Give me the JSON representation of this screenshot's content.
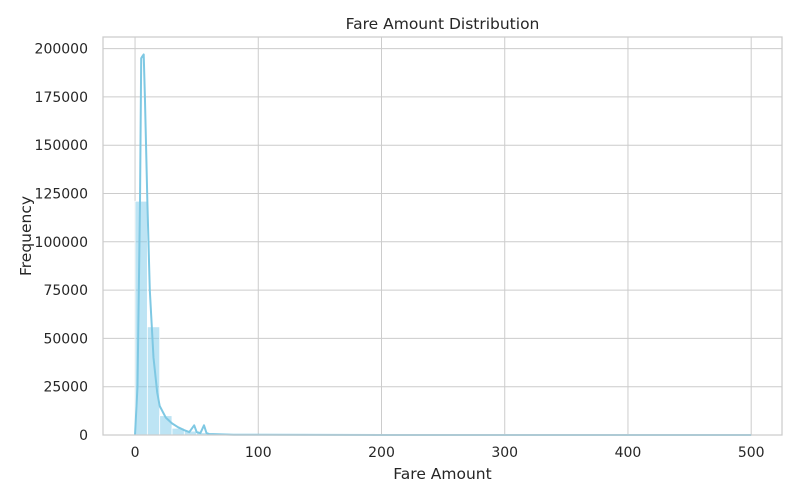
{
  "chart_data": {
    "type": "bar",
    "title": "Fare Amount Distribution",
    "xlabel": "Fare Amount",
    "ylabel": "Frequency",
    "xlim": [
      -26,
      525
    ],
    "ylim": [
      0,
      206000
    ],
    "grid": true,
    "x_ticks": [
      0,
      100,
      200,
      300,
      400,
      500
    ],
    "x_tick_labels": [
      "0",
      "100",
      "200",
      "300",
      "400",
      "500"
    ],
    "y_ticks": [
      0,
      25000,
      50000,
      75000,
      100000,
      125000,
      150000,
      175000,
      200000
    ],
    "y_tick_labels": [
      "0",
      "25000",
      "50000",
      "75000",
      "100000",
      "125000",
      "150000",
      "175000",
      "200000"
    ],
    "bin_width": 10,
    "bins": [
      {
        "x0": 0,
        "x1": 10,
        "count": 121000
      },
      {
        "x0": 10,
        "x1": 20,
        "count": 56000
      },
      {
        "x0": 20,
        "x1": 30,
        "count": 10000
      },
      {
        "x0": 30,
        "x1": 40,
        "count": 3500
      },
      {
        "x0": 40,
        "x1": 50,
        "count": 2000
      },
      {
        "x0": 50,
        "x1": 60,
        "count": 1200
      },
      {
        "x0": 60,
        "x1": 70,
        "count": 500
      },
      {
        "x0": 70,
        "x1": 80,
        "count": 300
      },
      {
        "x0": 80,
        "x1": 90,
        "count": 150
      },
      {
        "x0": 90,
        "x1": 100,
        "count": 100
      }
    ],
    "kde": {
      "x": [
        0,
        2,
        4,
        5,
        6,
        7,
        8,
        10,
        12,
        15,
        18,
        20,
        25,
        30,
        35,
        40,
        44,
        48,
        50,
        53,
        56,
        58,
        60,
        70,
        80,
        100,
        150,
        200,
        300,
        400,
        500
      ],
      "y": [
        0,
        25000,
        120000,
        195000,
        196000,
        197000,
        175000,
        120000,
        75000,
        40000,
        22000,
        15000,
        9000,
        6000,
        4000,
        2500,
        1500,
        5000,
        1500,
        1000,
        5000,
        1000,
        500,
        300,
        150,
        80,
        30,
        10,
        0,
        0,
        0
      ]
    },
    "colors": {
      "bar_fill": "#87ceeb",
      "kde_line": "#7ec8e3"
    }
  }
}
